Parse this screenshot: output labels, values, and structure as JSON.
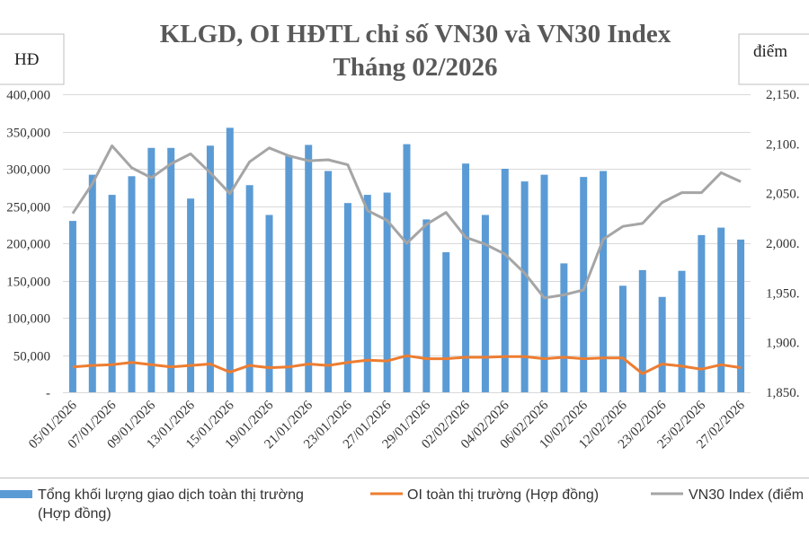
{
  "chart_data": {
    "type": "bar",
    "title": "KLGD, OI HĐTL chỉ số VN30 và VN30 Index",
    "subtitle": "Tháng 02/2026",
    "left_unit": "HĐ",
    "right_unit": "điểm",
    "left_axis": {
      "ylim": [
        0,
        400000
      ],
      "ticks": [
        {
          "value": 0,
          "label": "-"
        },
        {
          "value": 50000,
          "label": "50,000"
        },
        {
          "value": 100000,
          "label": "100,000"
        },
        {
          "value": 150000,
          "label": "150,000"
        },
        {
          "value": 200000,
          "label": "200,000"
        },
        {
          "value": 250000,
          "label": "250,000"
        },
        {
          "value": 300000,
          "label": "300,000"
        },
        {
          "value": 350000,
          "label": "350,000"
        },
        {
          "value": 400000,
          "label": "400,000"
        }
      ]
    },
    "right_axis": {
      "ylim": [
        1850,
        2150
      ],
      "ticks": [
        {
          "value": 1850,
          "label": "1,850."
        },
        {
          "value": 1900,
          "label": "1,900."
        },
        {
          "value": 1950,
          "label": "1,950."
        },
        {
          "value": 2000,
          "label": "2,000."
        },
        {
          "value": 2050,
          "label": "2,050."
        },
        {
          "value": 2100,
          "label": "2,100."
        },
        {
          "value": 2150,
          "label": "2,150."
        }
      ]
    },
    "grid": true,
    "legend_position": "bottom",
    "categories": [
      "05/01/2026",
      "06/01/2026",
      "07/01/2026",
      "08/01/2026",
      "09/01/2026",
      "12/01/2026",
      "13/01/2026",
      "14/01/2026",
      "15/01/2026",
      "16/01/2026",
      "19/01/2026",
      "20/01/2026",
      "21/01/2026",
      "22/01/2026",
      "23/01/2026",
      "26/01/2026",
      "27/01/2026",
      "28/01/2026",
      "29/01/2026",
      "30/01/2026",
      "02/02/2026",
      "03/02/2026",
      "04/02/2026",
      "05/02/2026",
      "06/02/2026",
      "09/02/2026",
      "10/02/2026",
      "11/02/2026",
      "12/02/2026",
      "13/02/2026",
      "23/02/2026",
      "24/02/2026",
      "25/02/2026",
      "26/02/2026",
      "27/02/2026"
    ],
    "xtick_labels": [
      "05/01/2026",
      "07/01/2026",
      "09/01/2026",
      "13/01/2026",
      "15/01/2026",
      "19/01/2026",
      "21/01/2026",
      "23/01/2026",
      "27/01/2026",
      "29/01/2026",
      "02/02/2026",
      "04/02/2026",
      "06/02/2026",
      "10/02/2026",
      "12/02/2026",
      "23/02/2026",
      "25/02/2026",
      "27/02/2026"
    ],
    "series": [
      {
        "name": "Tổng khối lượng giao dịch toàn thị trường (Hợp đồng)",
        "type": "bar",
        "axis": "left",
        "color": "#5b9bd5",
        "values": [
          230000,
          292000,
          265000,
          290000,
          328000,
          328000,
          260000,
          331000,
          355000,
          278000,
          238000,
          318000,
          332000,
          297000,
          254000,
          265000,
          268000,
          333000,
          232000,
          188000,
          307000,
          238000,
          300000,
          283000,
          292000,
          173000,
          289000,
          297000,
          143000,
          164000,
          128000,
          163000,
          211000,
          221000,
          205000
        ]
      },
      {
        "name": "OI toàn thị trường (Hợp đồng)",
        "type": "line",
        "axis": "left",
        "color": "#ed7d31",
        "values": [
          34000,
          36000,
          37000,
          40000,
          37000,
          34000,
          36000,
          38000,
          27000,
          36000,
          33000,
          34000,
          38000,
          36000,
          40000,
          43000,
          42000,
          49000,
          45000,
          45000,
          47000,
          47000,
          48000,
          48000,
          45000,
          47000,
          45000,
          46000,
          46000,
          25000,
          38000,
          35000,
          31000,
          37000,
          33000
        ]
      },
      {
        "name": "VN30 Index (điểm",
        "type": "line",
        "axis": "right",
        "color": "#a5a5a5",
        "values": [
          2030,
          2060,
          2098,
          2076,
          2066,
          2080,
          2090,
          2071,
          2050,
          2082,
          2096,
          2088,
          2083,
          2084,
          2079,
          2033,
          2023,
          2000,
          2019,
          2031,
          2006,
          1999,
          1989,
          1970,
          1945,
          1948,
          1953,
          2004,
          2017,
          2020,
          2041,
          2051,
          2051,
          2071,
          2062
        ]
      }
    ]
  }
}
